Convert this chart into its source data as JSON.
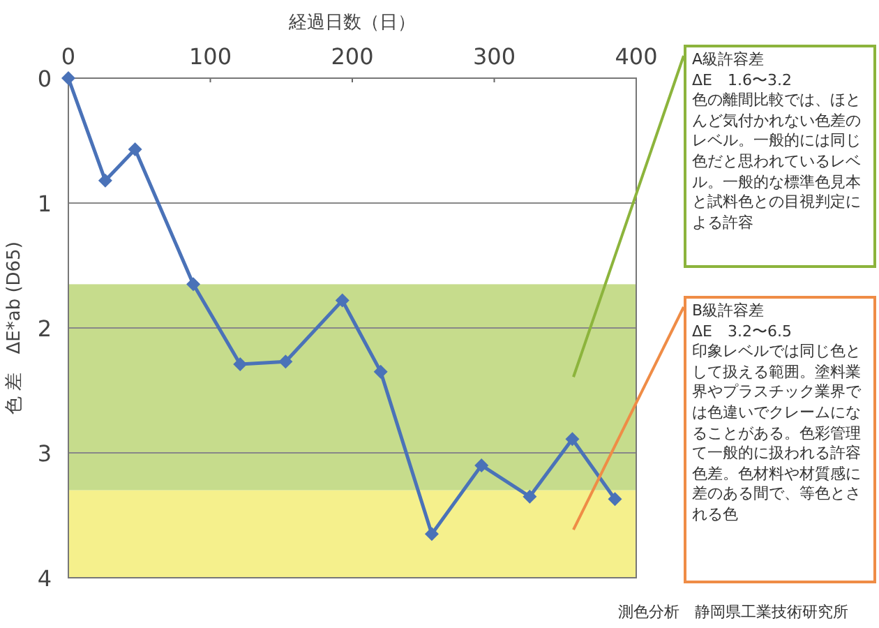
{
  "chart_data": {
    "type": "line",
    "xlabel": "経過日数（日）",
    "ylabel": "色 差　ΔE*ab (D65)",
    "xlim": [
      0,
      400
    ],
    "xticks": [
      0,
      100,
      200,
      300,
      400
    ],
    "ylim": [
      4,
      0
    ],
    "yticks": [
      0,
      1,
      2,
      3,
      4
    ],
    "grid": "y",
    "marker": "diamond",
    "line_style": "solid",
    "series": [
      {
        "color": "#4a72b8",
        "x": [
          0,
          26,
          47,
          88,
          121,
          153,
          193,
          220,
          256,
          291,
          325,
          355,
          385
        ],
        "values": [
          0,
          0.82,
          0.57,
          1.65,
          2.29,
          2.27,
          1.78,
          2.35,
          3.65,
          3.1,
          3.35,
          2.89,
          3.37
        ]
      }
    ],
    "bands": [
      {
        "axis": "y",
        "from": 1.65,
        "to": 3.3,
        "color": "#c6dc8c",
        "label": "A級許容差\nΔE　1.6〜3.2\n色の離間比較では、ほとんど気付かれない色差のレベル。一般的には同じ色だと思われているレベル。一般的な標準色見本と試料色との目視判定による許容"
      },
      {
        "axis": "y",
        "from": 3.3,
        "to": 4,
        "color": "#f5f08c",
        "label": "B級許容差\nΔE　3.2〜6.5\n印象レベルでは同じ色として扱える範囲。塗料業界やプラスチック業界では色違いでクレームになることがある。色彩管理て一般的に扱われる許容色差。色材料や材質感に差のある間で、等色とされる色"
      }
    ],
    "annotations": [
      "測色分析　静岡県工業技術研究所"
    ]
  }
}
